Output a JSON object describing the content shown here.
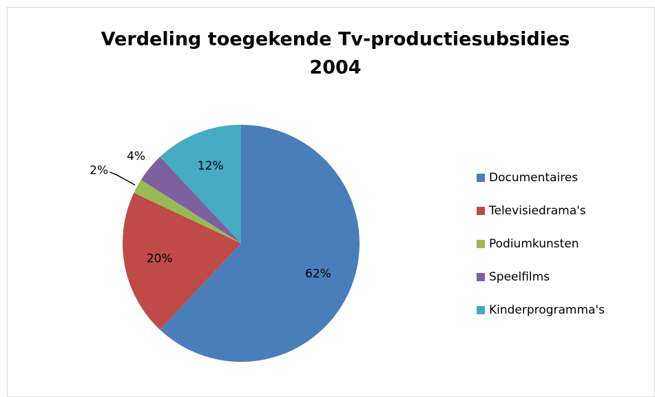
{
  "chart_data": {
    "type": "pie",
    "title": [
      "Verdeling toegekende Tv-productiesubsidies",
      "2004"
    ],
    "categories": [
      "Documentaires",
      "Televisiedrama's",
      "Podiumkunsten",
      "Speelfilms",
      "Kinderprogramma's"
    ],
    "values": [
      62,
      20,
      2,
      4,
      12
    ],
    "value_labels": [
      "62%",
      "20%",
      "2%",
      "4%",
      "12%"
    ],
    "colors": [
      "#4a7ebb",
      "#be4b48",
      "#98b954",
      "#7d60a0",
      "#46aac5"
    ],
    "legend": "right"
  }
}
